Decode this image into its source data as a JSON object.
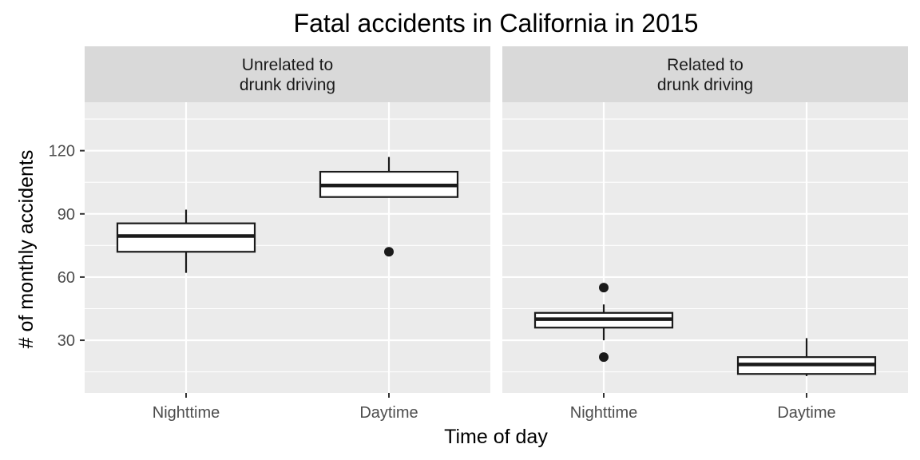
{
  "chart_data": {
    "type": "boxplot",
    "title": "Fatal accidents in California in 2015",
    "xlabel": "Time of day",
    "ylabel": "# of monthly accidents",
    "ylim": [
      5,
      143
    ],
    "yticks": [
      30,
      60,
      90,
      120
    ],
    "categories": [
      "Nighttime",
      "Daytime"
    ],
    "facets": [
      {
        "label_lines": [
          "Unrelated to",
          "drunk driving"
        ],
        "boxes": [
          {
            "category": "Nighttime",
            "whisker_low": 62,
            "q1": 72,
            "median": 79.5,
            "q3": 85.5,
            "whisker_high": 92,
            "outliers": []
          },
          {
            "category": "Daytime",
            "whisker_low": 98,
            "q1": 98,
            "median": 103.5,
            "q3": 110,
            "whisker_high": 117,
            "outliers": [
              72
            ]
          }
        ]
      },
      {
        "label_lines": [
          "Related to",
          "drunk driving"
        ],
        "boxes": [
          {
            "category": "Nighttime",
            "whisker_low": 30,
            "q1": 36,
            "median": 40,
            "q3": 43,
            "whisker_high": 47,
            "outliers": [
              55,
              22
            ]
          },
          {
            "category": "Daytime",
            "whisker_low": 13,
            "q1": 14,
            "median": 18.5,
            "q3": 22,
            "whisker_high": 31,
            "outliers": []
          }
        ]
      }
    ],
    "colors": {
      "panel_background": "#ebebeb",
      "strip_background": "#d9d9d9",
      "gridline": "#ffffff",
      "box_fill": "#ffffff",
      "box_stroke": "#1a1a1a",
      "tick_text": "#4d4d4d",
      "tick_mark": "#333333"
    },
    "grid": true,
    "legend": "none"
  }
}
